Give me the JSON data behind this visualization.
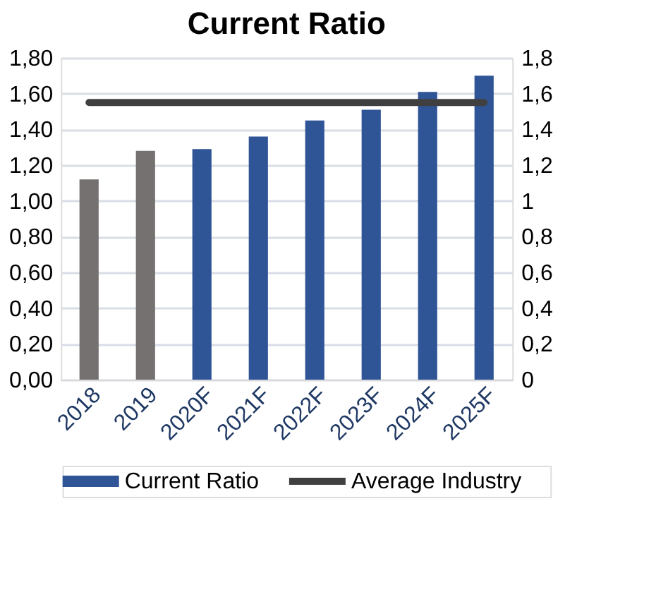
{
  "chart_data": {
    "type": "bar",
    "title": "Current Ratio",
    "categories": [
      "2018",
      "2019",
      "2020F",
      "2021F",
      "2022F",
      "2023F",
      "2024F",
      "2025F"
    ],
    "series": [
      {
        "name": "Current Ratio",
        "color": "#2f5597",
        "colors": [
          "#767171",
          "#767171",
          "#2f5597",
          "#2f5597",
          "#2f5597",
          "#2f5597",
          "#2f5597",
          "#2f5597"
        ],
        "values": [
          1.12,
          1.28,
          1.29,
          1.36,
          1.45,
          1.51,
          1.61,
          1.7
        ]
      },
      {
        "name": "Average Industry",
        "type": "line",
        "axis": "y2",
        "color": "#404040",
        "values": [
          1.55,
          1.55,
          1.55,
          1.55,
          1.55,
          1.55,
          1.55,
          1.55
        ]
      }
    ],
    "ylim": [
      0,
      1.8
    ],
    "yticks": [
      {
        "value": 0,
        "label": "0,00"
      },
      {
        "value": 0.2,
        "label": "0,20"
      },
      {
        "value": 0.4,
        "label": "0,40"
      },
      {
        "value": 0.6,
        "label": "0,60"
      },
      {
        "value": 0.8,
        "label": "0,80"
      },
      {
        "value": 1,
        "label": "1,00"
      },
      {
        "value": 1.2,
        "label": "1,20"
      },
      {
        "value": 1.4,
        "label": "1,40"
      },
      {
        "value": 1.6,
        "label": "1,60"
      },
      {
        "value": 1.8,
        "label": "1,80"
      }
    ],
    "y2lim": [
      0,
      1.8
    ],
    "y2ticks": [
      0,
      {
        "value": 0.2,
        "label": "0,2"
      },
      {
        "value": 0.4,
        "label": "0,4"
      },
      {
        "value": 0.6,
        "label": "0,6"
      },
      {
        "value": 0.8,
        "label": "0,8"
      },
      1,
      {
        "value": 1.2,
        "label": "1,2"
      },
      {
        "value": 1.4,
        "label": "1,4"
      },
      {
        "value": 1.6,
        "label": "1,6"
      },
      {
        "value": 1.8,
        "label": "1,8"
      }
    ],
    "grid": "y",
    "legend": "bottom",
    "marker": "none",
    "line_style": "solid"
  }
}
